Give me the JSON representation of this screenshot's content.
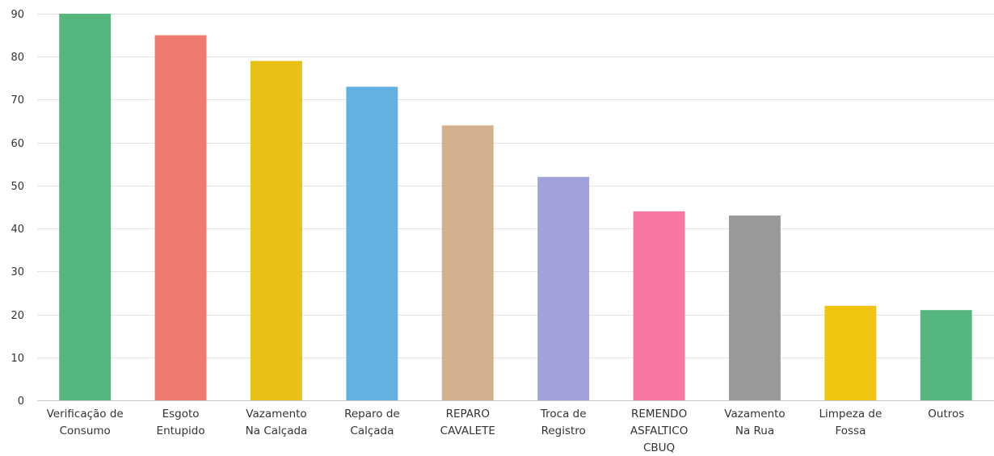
{
  "chart_data": {
    "type": "bar",
    "title": "",
    "xlabel": "",
    "ylabel": "",
    "ylim": [
      0,
      90
    ],
    "yticks": [
      0,
      10,
      20,
      30,
      40,
      50,
      60,
      70,
      80,
      90
    ],
    "grid": true,
    "categories": [
      [
        "Verificação de",
        "Consumo"
      ],
      [
        "Esgoto",
        "Entupido"
      ],
      [
        "Vazamento",
        "Na Calçada"
      ],
      [
        "Reparo de",
        "Calçada"
      ],
      [
        "REPARO",
        "CAVALETE"
      ],
      [
        "Troca de",
        "Registro"
      ],
      [
        "REMENDO",
        "ASFALTICO",
        "CBUQ"
      ],
      [
        "Vazamento",
        "Na Rua"
      ],
      [
        "Limpeza de",
        "Fossa"
      ],
      [
        "Outros"
      ]
    ],
    "values": [
      90,
      85,
      79,
      73,
      64,
      52,
      44,
      43,
      22,
      21
    ],
    "colors": [
      "#55b77d",
      "#ef7a6f",
      "#e9c117",
      "#64b0e3",
      "#d4b08f",
      "#a1a1db",
      "#f677a3",
      "#999999",
      "#f0c40f",
      "#55b77d"
    ]
  }
}
